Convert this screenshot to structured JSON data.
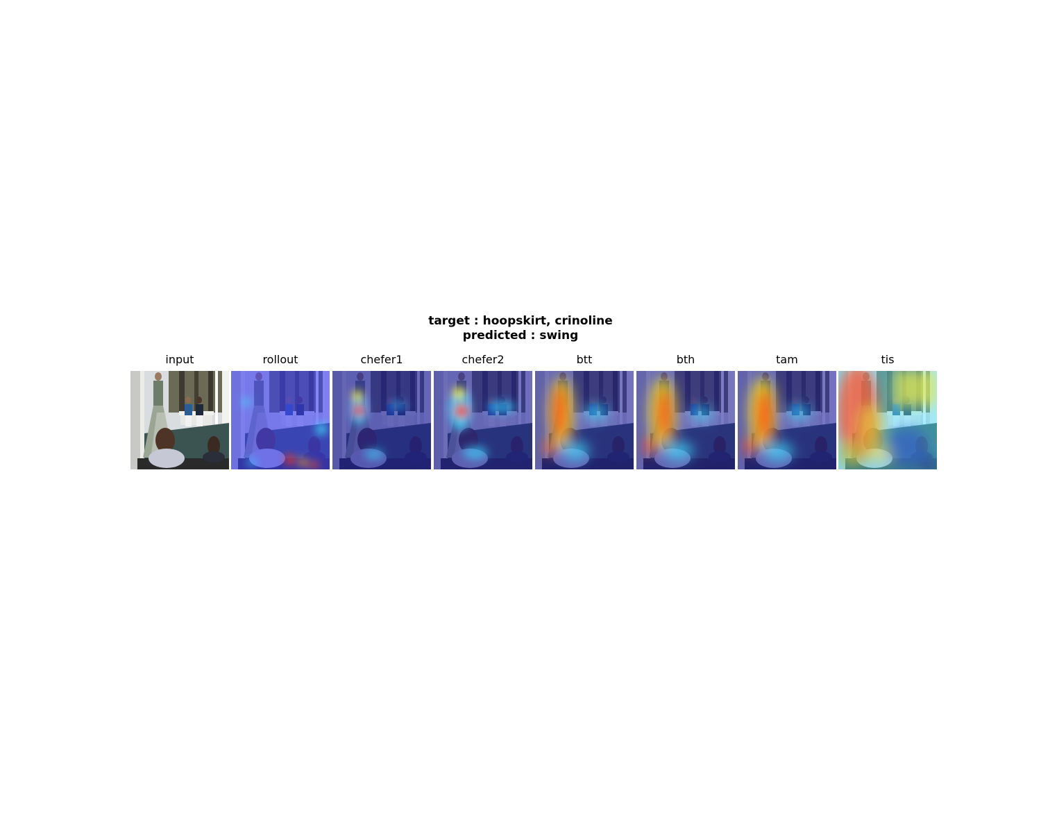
{
  "figure": {
    "title_line1": "target : hoopskirt, crinoline",
    "title_line2": "predicted : swing"
  },
  "panels": [
    {
      "title": "input"
    },
    {
      "title": "rollout"
    },
    {
      "title": "chefer1"
    },
    {
      "title": "chefer2"
    },
    {
      "title": "btt"
    },
    {
      "title": "bth"
    },
    {
      "title": "tam"
    },
    {
      "title": "tis"
    }
  ]
}
